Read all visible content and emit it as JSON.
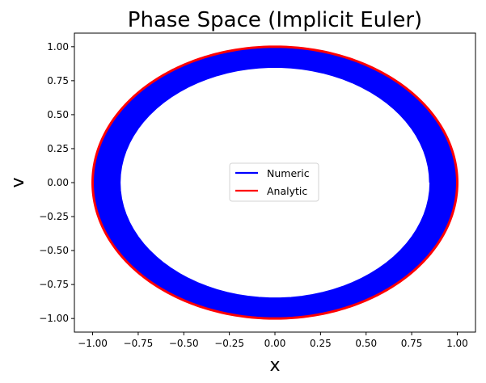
{
  "chart_data": {
    "type": "line",
    "title": "Phase Space  (Implicit Euler)",
    "xlabel": "x",
    "ylabel": "v",
    "xlim": [
      -1.1,
      1.1
    ],
    "ylim": [
      -1.1,
      1.1
    ],
    "xticks": [
      -1.0,
      -0.75,
      -0.5,
      -0.25,
      0.0,
      0.25,
      0.5,
      0.75,
      1.0
    ],
    "yticks": [
      -1.0,
      -0.75,
      -0.5,
      -0.25,
      0.0,
      0.25,
      0.5,
      0.75,
      1.0
    ],
    "xtick_labels": [
      "−1.00",
      "−0.75",
      "−0.50",
      "−0.25",
      "0.00",
      "0.25",
      "0.50",
      "0.75",
      "1.00"
    ],
    "ytick_labels": [
      "−1.00",
      "−0.75",
      "−0.50",
      "−0.25",
      "0.00",
      "0.25",
      "0.50",
      "0.75",
      "1.00"
    ],
    "grid": false,
    "legend_position": "center",
    "series": [
      {
        "name": "Numeric",
        "color": "#0000ff",
        "description": "spiral trajectory with radius decaying from 1.00 to 0.85",
        "radius_start": 1.0,
        "radius_end": 0.85
      },
      {
        "name": "Analytic",
        "color": "#ff0000",
        "description": "unit circle x=cos t, v=sin t",
        "radius": 1.0
      }
    ]
  }
}
